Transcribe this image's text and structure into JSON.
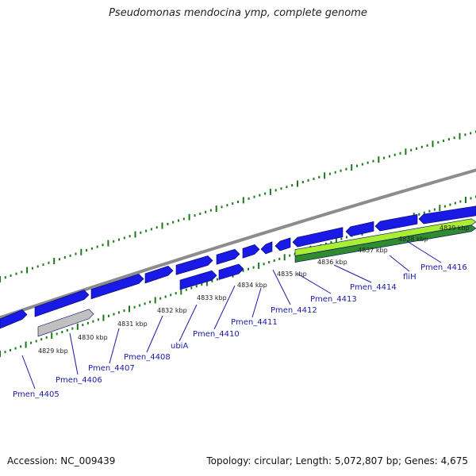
{
  "title": "Pseudomonas mendocina ymp, complete genome",
  "footer": {
    "accession": "Accession: NC_009439",
    "summary": "Topology: circular; Length: 5,072,807 bp; Genes: 4,675"
  },
  "colors": {
    "backbone": "#8c8c8c",
    "tick": "#1a7a1a",
    "gene_forward": "#1a1ae6",
    "gene_reverse": "#1a1ae6",
    "pseudo_gene": "#c0c0c0",
    "rna_light": "#aaee33",
    "rna_dark": "#2e8b2e",
    "label": "#1a1aa6"
  },
  "kbp_ticks": [
    "4829 kbp",
    "4830 kbp",
    "4831 kbp",
    "4832 kbp",
    "4833 kbp",
    "4834 kbp",
    "4835 kbp",
    "4836 kbp",
    "4837 kbp",
    "4838 kbp",
    "4839 kbp"
  ],
  "gene_labels": [
    "Pmen_4405",
    "Pmen_4406",
    "Pmen_4407",
    "Pmen_4408",
    "ubiA",
    "Pmen_4410",
    "Pmen_4411",
    "Pmen_4412",
    "Pmen_4413",
    "Pmen_4414",
    "fliH",
    "Pmen_4416"
  ]
}
